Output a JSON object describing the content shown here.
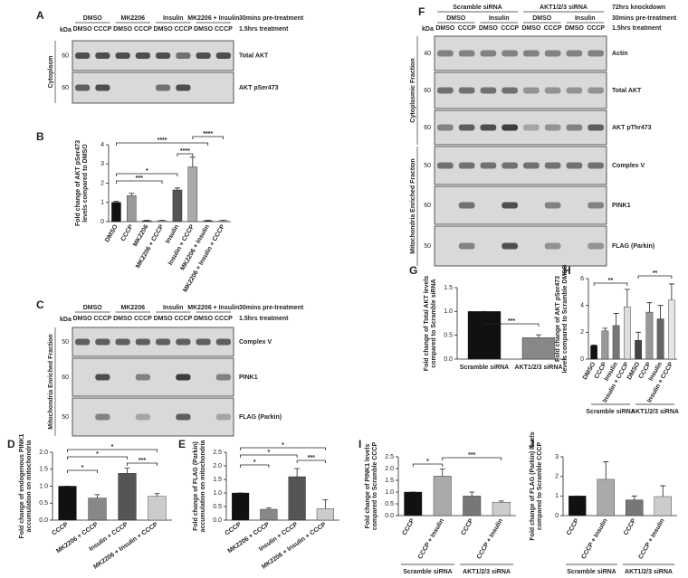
{
  "blots": [
    {
      "letter": "A",
      "kda": "kDa",
      "header_rows": [
        {
          "groups": [
            "DMSO",
            "MK2206",
            "Insulin",
            "MK2206 + Insulin"
          ],
          "note": "30mins pre-treatment"
        },
        {
          "groups": [
            "DMSO",
            "CCCP",
            "DMSO",
            "CCCP",
            "DMSO",
            "CCCP",
            "DMSO",
            "CCCP"
          ],
          "note": "1.5hrs treatment"
        }
      ],
      "fractions": [
        "Cytoplasm"
      ],
      "rows": [
        {
          "marker": 60,
          "label": "Total AKT"
        },
        {
          "marker": 60,
          "label": "AKT pSer473"
        }
      ]
    },
    {
      "letter": "C",
      "kda": "kDa",
      "header_rows": [
        {
          "groups": [
            "DMSO",
            "MK2206",
            "Insulin",
            "MK2206 + Insulin"
          ],
          "note": "30mins pre-treatment"
        },
        {
          "groups": [
            "DMSO",
            "CCCP",
            "DMSO",
            "CCCP",
            "DMSO",
            "CCCP",
            "DMSO",
            "CCCP"
          ],
          "note": "1.5hrs treatment"
        }
      ],
      "fractions": [
        "Mitochondria Enriched Fraction"
      ],
      "rows": [
        {
          "marker": 50,
          "label": "Complex V"
        },
        {
          "marker": 60,
          "label": "PINK1"
        },
        {
          "marker": 50,
          "label": "FLAG (Parkin)"
        }
      ]
    },
    {
      "letter": "F",
      "kda": "kDa",
      "header_rows": [
        {
          "groups": [
            "Scramble siRNA",
            "AKT1/2/3 siRNA"
          ],
          "note": "72hrs knockdown"
        },
        {
          "groups": [
            "DMSO",
            "Insulin",
            "DMSO",
            "Insulin"
          ],
          "note": "30mins pre-treatment"
        },
        {
          "groups": [
            "DMSO",
            "CCCP",
            "DMSO",
            "CCCP",
            "DMSO",
            "CCCP",
            "DMSO",
            "CCCP"
          ],
          "note": "1.5hrs treatment"
        }
      ],
      "fractions": [
        "Cytoplasmic Fraction",
        "Mitochondria Enriched Fraction"
      ],
      "rows": [
        {
          "marker": 40,
          "label": "Actin"
        },
        {
          "marker": 60,
          "label": "Total AKT"
        },
        {
          "marker": 60,
          "label": "AKT pThr473"
        },
        {
          "marker": 50,
          "label": "Complex V"
        },
        {
          "marker": 60,
          "label": "PINK1"
        },
        {
          "marker": 50,
          "label": "FLAG (Parkin)"
        }
      ]
    }
  ],
  "chart_data": [
    {
      "type": "bar",
      "letter": "B",
      "ylabel": [
        "Fold change of AKT pSer473",
        "levels compared to DMSO"
      ],
      "categories": [
        "DMSO",
        "CCCP",
        "MK2206",
        "MK2206 + CCCP",
        "Insulin",
        "Insulin + CCCP",
        "MK2206 + Insulin",
        "MK2206 + Insulin + CCCP"
      ],
      "values": [
        1.0,
        1.35,
        0.05,
        0.05,
        1.65,
        2.85,
        0.05,
        0.05
      ],
      "errors": [
        0.05,
        0.12,
        0.02,
        0.02,
        0.1,
        0.5,
        0.02,
        0.02
      ],
      "colors": [
        "#111111",
        "#999999",
        "#444444",
        "#bbbbbb",
        "#555555",
        "#aaaaaa",
        "#666666",
        "#cccccc"
      ],
      "ylim": [
        0,
        4
      ],
      "yticks": [
        0,
        1,
        2,
        3,
        4
      ],
      "annotations": [
        "****",
        "*",
        "***",
        "****",
        "****"
      ]
    },
    {
      "type": "bar",
      "letter": "D",
      "ylabel": [
        "Fold change of endogenous PINK1",
        "accumulation on mitochondria"
      ],
      "categories": [
        "CCCP",
        "MK2206 + CCCP",
        "Insulin + CCCP",
        "MK2206 + Insulin + CCCP"
      ],
      "values": [
        1.0,
        0.65,
        1.38,
        0.7
      ],
      "errors": [
        0,
        0.1,
        0.15,
        0.08
      ],
      "colors": [
        "#111111",
        "#888888",
        "#555555",
        "#cccccc"
      ],
      "ylim": [
        0,
        2
      ],
      "yticks": [
        {
          "value": 0,
          "label": "0.0"
        },
        0.5,
        {
          "value": 1,
          "label": "1.0"
        },
        1.5,
        {
          "value": 2,
          "label": "2.0"
        }
      ],
      "annotations": [
        "*",
        "*",
        "*",
        "***"
      ]
    },
    {
      "type": "bar",
      "letter": "E",
      "ylabel": [
        "Fold change of FLAG (Parkin)",
        "accumulation on mitochondria"
      ],
      "categories": [
        "CCCP",
        "MK2206 + CCCP",
        "Insulin + CCCP",
        "MK2206 + Insulin + CCCP"
      ],
      "values": [
        1.0,
        0.4,
        1.6,
        0.42
      ],
      "errors": [
        0,
        0.05,
        0.3,
        0.33
      ],
      "colors": [
        "#111111",
        "#888888",
        "#555555",
        "#cccccc"
      ],
      "ylim": [
        0,
        2.5
      ],
      "yticks": [
        {
          "value": 0,
          "label": "0.0"
        },
        0.5,
        {
          "value": 1,
          "label": "1.0"
        },
        1.5,
        {
          "value": 2,
          "label": "2.0"
        },
        2.5
      ],
      "annotations": [
        "*",
        "*",
        "*",
        "***"
      ]
    },
    {
      "type": "bar",
      "letter": "G",
      "ylabel": [
        "Fold change of Total AKT levels",
        "compared to Scramble siRNA"
      ],
      "categories": [
        "Scramble siRNA",
        "AKT1/2/3 siRNA"
      ],
      "values": [
        1.0,
        0.45
      ],
      "errors": [
        0,
        0.06
      ],
      "colors": [
        "#111111",
        "#888888"
      ],
      "ylim": [
        0,
        1.5
      ],
      "yticks": [
        {
          "value": 0,
          "label": "0.0"
        },
        0.5,
        {
          "value": 1,
          "label": "1.0"
        },
        1.5
      ],
      "annotations": [
        "***"
      ]
    },
    {
      "type": "bar",
      "letter": "H",
      "ylabel": [
        "Fold change of AKT pSer473",
        "levels compared to Scramble DMSO"
      ],
      "categories": [
        "DMSO",
        "CCCP",
        "Insulin",
        "Insulin + CCCP",
        "DMSO",
        "CCCP",
        "Insulin",
        "Insulin + CCCP"
      ],
      "values": [
        1.0,
        2.1,
        2.5,
        3.9,
        1.4,
        3.5,
        3.0,
        4.4
      ],
      "errors": [
        0.05,
        0.2,
        0.9,
        1.3,
        0.6,
        0.7,
        1.0,
        1.2
      ],
      "colors": [
        "#111111",
        "#999999",
        "#777777",
        "#dddddd",
        "#444444",
        "#999999",
        "#666666",
        "#e5e5e5"
      ],
      "groups": [
        "Scramble siRNA",
        "AKT1/2/3 siRNA"
      ],
      "ylim": [
        0,
        6
      ],
      "yticks": [
        0,
        2,
        4,
        6
      ],
      "annotations": [
        "**",
        "**"
      ]
    },
    {
      "type": "bar",
      "letter": "I",
      "ylabel": [
        "Fold change of PINK1 levels",
        "compared to Scramble CCCP"
      ],
      "categories": [
        "CCCP",
        "CCCP + Insulin",
        "CCCP",
        "CCCP + Insulin"
      ],
      "values": [
        1.0,
        1.68,
        0.83,
        0.57
      ],
      "errors": [
        0,
        0.3,
        0.17,
        0.05
      ],
      "colors": [
        "#111111",
        "#aaaaaa",
        "#777777",
        "#cccccc"
      ],
      "groups": [
        "Scramble siRNA",
        "AKT1/2/3 siRNA"
      ],
      "ylim": [
        0,
        2.5
      ],
      "yticks": [
        {
          "value": 0,
          "label": "0.0"
        },
        0.5,
        {
          "value": 1,
          "label": "1.0"
        },
        1.5,
        {
          "value": 2,
          "label": "2.0"
        },
        2.5
      ],
      "annotations": [
        "*",
        "***"
      ]
    },
    {
      "type": "bar",
      "letter": "J",
      "ylabel": [
        "Fold change of FLAG (Parkin) levels",
        "compared to Scramble CCCP"
      ],
      "categories": [
        "CCCP",
        "CCCP + Insulin",
        "CCCP",
        "CCCP + Insulin"
      ],
      "values": [
        1.0,
        1.85,
        0.8,
        0.97
      ],
      "errors": [
        0,
        0.9,
        0.2,
        0.55
      ],
      "colors": [
        "#111111",
        "#aaaaaa",
        "#777777",
        "#cccccc"
      ],
      "groups": [
        "Scramble siRNA",
        "AKT1/2/3 siRNA"
      ],
      "ylim": [
        0,
        3
      ],
      "yticks": [
        0,
        1,
        2,
        3
      ],
      "annotations": []
    }
  ]
}
